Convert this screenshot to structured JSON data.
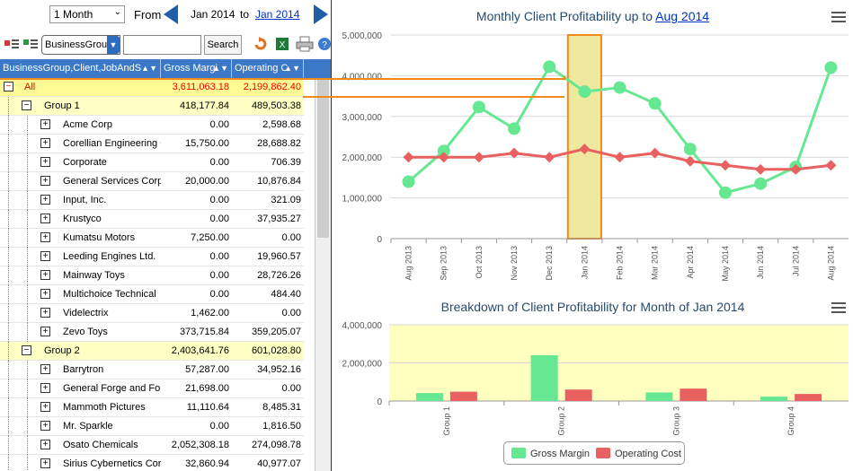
{
  "period": {
    "select_value": "1 Month",
    "from_label": "From",
    "date_from": "Jan 2014",
    "to_label": "to",
    "date_to": "Jan 2014"
  },
  "toolbar": {
    "group_select_value": "BusinessGrou",
    "search_value": "",
    "search_button": "Search"
  },
  "grid": {
    "columns": [
      "BusinessGroup,Client,JobAndS",
      "Gross Margi",
      "Operating C"
    ],
    "rows": [
      {
        "kind": "all",
        "name": "All",
        "gm": "3,611,063.18",
        "oc": "2,199,862.40"
      },
      {
        "kind": "group",
        "name": "Group 1",
        "gm": "418,177.84",
        "oc": "489,503.38"
      },
      {
        "kind": "client",
        "name": "Acme Corp",
        "gm": "0.00",
        "oc": "2,598.68"
      },
      {
        "kind": "client",
        "name": "Corellian Engineering C",
        "gm": "15,750.00",
        "oc": "28,688.82"
      },
      {
        "kind": "client",
        "name": "Corporate",
        "gm": "0.00",
        "oc": "706.39"
      },
      {
        "kind": "client",
        "name": "General Services Corpo",
        "gm": "20,000.00",
        "oc": "10,876.84"
      },
      {
        "kind": "client",
        "name": "Input, Inc.",
        "gm": "0.00",
        "oc": "321.09"
      },
      {
        "kind": "client",
        "name": "Krustyco",
        "gm": "0.00",
        "oc": "37,935.27"
      },
      {
        "kind": "client",
        "name": "Kumatsu Motors",
        "gm": "7,250.00",
        "oc": "0.00"
      },
      {
        "kind": "client",
        "name": "Leeding Engines Ltd.",
        "gm": "0.00",
        "oc": "19,960.57"
      },
      {
        "kind": "client",
        "name": "Mainway Toys",
        "gm": "0.00",
        "oc": "28,726.26"
      },
      {
        "kind": "client",
        "name": "Multichoice Technical",
        "gm": "0.00",
        "oc": "484.40"
      },
      {
        "kind": "client",
        "name": "Videlectrix",
        "gm": "1,462.00",
        "oc": "0.00"
      },
      {
        "kind": "client",
        "name": "Zevo Toys",
        "gm": "373,715.84",
        "oc": "359,205.07"
      },
      {
        "kind": "group",
        "name": "Group 2",
        "gm": "2,403,641.76",
        "oc": "601,028.80"
      },
      {
        "kind": "client",
        "name": "Barrytron",
        "gm": "57,287.00",
        "oc": "34,952.16"
      },
      {
        "kind": "client",
        "name": "General Forge and Fou",
        "gm": "21,698.00",
        "oc": "0.00"
      },
      {
        "kind": "client",
        "name": "Mammoth Pictures",
        "gm": "11,110.64",
        "oc": "8,485.31"
      },
      {
        "kind": "client",
        "name": "Mr. Sparkle",
        "gm": "0.00",
        "oc": "1,816.50"
      },
      {
        "kind": "client",
        "name": "Osato Chemicals",
        "gm": "2,052,308.18",
        "oc": "274,098.78"
      },
      {
        "kind": "client",
        "name": "Sirius Cybernetics Corp",
        "gm": "32,860.94",
        "oc": "40,977.07"
      }
    ]
  },
  "top_chart": {
    "title_prefix": "Monthly Client Profitability up to",
    "title_link": "Aug 2014"
  },
  "bottom_chart": {
    "title": "Breakdown of Client Profitability for Month of Jan 2014"
  },
  "colors": {
    "gross_margin": "#66e892",
    "operating_cost": "#e8605f",
    "highlight_fill": "#eee99e",
    "highlight_stroke": "#f08a1c",
    "plot_bg": "#ffffc0"
  },
  "chart_data": [
    {
      "type": "line",
      "title": "Monthly Client Profitability up to Aug 2014",
      "categories": [
        "Aug 2013",
        "Sep 2013",
        "Oct 2013",
        "Nov 2013",
        "Dec 2013",
        "Jan 2014",
        "Feb 2014",
        "Mar 2014",
        "Apr 2014",
        "May 2014",
        "Jun 2014",
        "Jul 2014",
        "Aug 2014"
      ],
      "y_ticks": [
        "0",
        "1,000,000",
        "2,000,000",
        "3,000,000",
        "4,000,000",
        "5,000,000"
      ],
      "ylim": [
        0,
        5000000
      ],
      "highlight_category": "Jan 2014",
      "series": [
        {
          "name": "Gross Margin",
          "values": [
            1400000,
            2150000,
            3230000,
            2700000,
            4220000,
            3610000,
            3710000,
            3320000,
            2200000,
            1130000,
            1350000,
            1760000,
            4200000
          ]
        },
        {
          "name": "Operating Cost",
          "values": [
            2000000,
            2000000,
            2000000,
            2100000,
            2000000,
            2200000,
            2000000,
            2100000,
            1900000,
            1800000,
            1700000,
            1700000,
            1800000
          ]
        }
      ]
    },
    {
      "type": "bar",
      "title": "Breakdown of Client Profitability for Month of Jan 2014",
      "categories": [
        "Group 1",
        "Group 2",
        "Group 3",
        "Group 4"
      ],
      "y_ticks": [
        "0",
        "2,000,000",
        "4,000,000"
      ],
      "ylim": [
        0,
        4000000
      ],
      "legend": "bottom-center",
      "series": [
        {
          "name": "Gross Margin",
          "values": [
            418178,
            2403642,
            450000,
            230000
          ]
        },
        {
          "name": "Operating Cost",
          "values": [
            489503,
            601029,
            650000,
            370000
          ]
        }
      ]
    }
  ]
}
